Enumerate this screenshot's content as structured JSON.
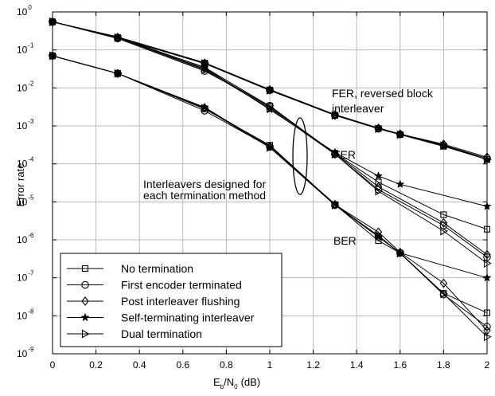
{
  "chart_data": {
    "type": "line",
    "xlabel": {
      "main_1": "E",
      "sub_1": "b",
      "main_2": "/N",
      "sub_2": "0",
      "unit": "(dB)"
    },
    "ylabel": "Error rate",
    "xlim": [
      0,
      2
    ],
    "ylim": [
      1e-09,
      1
    ],
    "yscale": "log",
    "grid": true,
    "x_ticks": [
      "0",
      "0.2",
      "0.4",
      "0.6",
      "0.8",
      "1",
      "1.2",
      "1.4",
      "1.6",
      "1.8",
      "2"
    ],
    "y_ticks": [
      {
        "base": "10",
        "exp": "0"
      },
      {
        "base": "10",
        "exp": "-1"
      },
      {
        "base": "10",
        "exp": "-2"
      },
      {
        "base": "10",
        "exp": "-3"
      },
      {
        "base": "10",
        "exp": "-4"
      },
      {
        "base": "10",
        "exp": "-5"
      },
      {
        "base": "10",
        "exp": "-6"
      },
      {
        "base": "10",
        "exp": "-7"
      },
      {
        "base": "10",
        "exp": "-8"
      },
      {
        "base": "10",
        "exp": "-9"
      }
    ],
    "legend_position": "bottom-left",
    "annotations": {
      "fer_reversed_1": "FER, reversed block",
      "fer_reversed_2": "interleaver",
      "fer": "FER",
      "designed_1": "Interleavers designed for",
      "designed_2": "each termination method",
      "ber": "BER"
    },
    "series": [
      {
        "name": "No termination",
        "marker": "square",
        "curves": [
          {
            "group": "FER reversed",
            "x": [
              0,
              0.3,
              0.7,
              1,
              1.3,
              1.5,
              1.6,
              1.8,
              2
            ],
            "y": [
              0.55,
              0.21,
              0.045,
              0.0088,
              0.0019,
              0.00085,
              0.00059,
              0.00029,
              0.00013
            ]
          },
          {
            "group": "FER",
            "x": [
              0,
              0.3,
              0.7,
              1,
              1.3,
              1.5,
              1.8,
              2
            ],
            "y": [
              0.55,
              0.21,
              0.035,
              0.0033,
              0.00019,
              3.3e-05,
              4.6e-06,
              1.9e-06
            ]
          },
          {
            "group": "BER",
            "x": [
              0,
              0.3,
              0.7,
              1,
              1.3,
              1.5,
              1.6,
              1.8,
              2
            ],
            "y": [
              0.07,
              0.024,
              0.0028,
              0.00031,
              8.5e-06,
              9.5e-07,
              4.5e-07,
              3.9e-08,
              1.2e-08
            ]
          }
        ]
      },
      {
        "name": "First encoder terminated",
        "marker": "circle",
        "curves": [
          {
            "group": "FER reversed",
            "x": [
              0,
              0.3,
              0.7,
              1,
              1.3,
              1.5,
              1.6,
              1.8,
              2
            ],
            "y": [
              0.55,
              0.21,
              0.044,
              0.0087,
              0.0019,
              0.00085,
              0.0006,
              0.00031,
              0.00014
            ]
          },
          {
            "group": "FER",
            "x": [
              0,
              0.3,
              0.7,
              1,
              1.3,
              1.5,
              1.8,
              2
            ],
            "y": [
              0.55,
              0.2,
              0.028,
              0.0034,
              0.00018,
              2.1e-05,
              2.4e-06,
              3.5e-07
            ]
          },
          {
            "group": "BER",
            "x": [
              0,
              0.3,
              0.7,
              1,
              1.3,
              1.5,
              1.6,
              1.8,
              2
            ],
            "y": [
              0.07,
              0.024,
              0.0025,
              0.00028,
              8.2e-06,
              1.2e-06,
              4.5e-07,
              3.6e-08,
              5.2e-09
            ]
          }
        ]
      },
      {
        "name": "Post interleaver flushing",
        "marker": "diamond",
        "curves": [
          {
            "group": "FER reversed",
            "x": [
              0,
              0.3,
              0.7,
              1,
              1.3,
              1.5,
              1.6,
              1.8,
              2
            ],
            "y": [
              0.55,
              0.21,
              0.045,
              0.0089,
              0.0019,
              0.00087,
              0.00061,
              0.00033,
              0.00015
            ]
          },
          {
            "group": "FER",
            "x": [
              0,
              0.3,
              0.7,
              1,
              1.3,
              1.5,
              1.8,
              2
            ],
            "y": [
              0.55,
              0.21,
              0.032,
              0.0031,
              0.00019,
              2.5e-05,
              2.8e-06,
              4.1e-07
            ]
          },
          {
            "group": "BER",
            "x": [
              0,
              0.3,
              0.7,
              1,
              1.3,
              1.5,
              1.6,
              1.8,
              2
            ],
            "y": [
              0.07,
              0.024,
              0.003,
              0.00029,
              8.4e-06,
              1.6e-06,
              4.7e-07,
              7.2e-08,
              4.1e-09
            ]
          }
        ]
      },
      {
        "name": "Self-terminating interleaver",
        "marker": "star",
        "curves": [
          {
            "group": "FER reversed",
            "x": [
              0,
              0.3,
              0.7,
              1,
              1.3,
              1.5,
              1.6,
              1.8,
              2
            ],
            "y": [
              0.55,
              0.22,
              0.046,
              0.0091,
              0.002,
              0.00088,
              0.00061,
              0.00031,
              0.00013
            ]
          },
          {
            "group": "FER",
            "x": [
              0,
              0.3,
              0.7,
              1,
              1.3,
              1.5,
              1.6,
              2
            ],
            "y": [
              0.55,
              0.22,
              0.034,
              0.0027,
              0.0002,
              4.8e-05,
              2.9e-05,
              7.6e-06
            ]
          },
          {
            "group": "BER",
            "x": [
              0,
              0.3,
              0.7,
              1,
              1.3,
              1.5,
              1.6,
              2
            ],
            "y": [
              0.07,
              0.024,
              0.0031,
              0.00028,
              8.8e-06,
              1.2e-06,
              4.5e-07,
              1e-07
            ]
          }
        ]
      },
      {
        "name": "Dual termination",
        "marker": "triangle-right",
        "curves": [
          {
            "group": "FER reversed",
            "x": [
              0,
              0.3,
              0.7,
              1,
              1.3,
              1.5,
              1.6,
              1.8,
              2
            ],
            "y": [
              0.55,
              0.21,
              0.044,
              0.0086,
              0.0019,
              0.00084,
              0.00059,
              0.0003,
              0.00013
            ]
          },
          {
            "group": "FER",
            "x": [
              0,
              0.3,
              0.7,
              1,
              1.3,
              1.5,
              1.8,
              2
            ],
            "y": [
              0.55,
              0.21,
              0.03,
              0.0029,
              0.00018,
              1.9e-05,
              1.7e-06,
              2.4e-07
            ]
          },
          {
            "group": "BER",
            "x": [
              0,
              0.3,
              0.7,
              1,
              1.3,
              1.5,
              1.6,
              1.8,
              2
            ],
            "y": [
              0.07,
              0.024,
              0.0029,
              0.00027,
              8.2e-06,
              1.3e-06,
              4.4e-07,
              3.8e-08,
              2.8e-09
            ]
          }
        ]
      }
    ]
  }
}
